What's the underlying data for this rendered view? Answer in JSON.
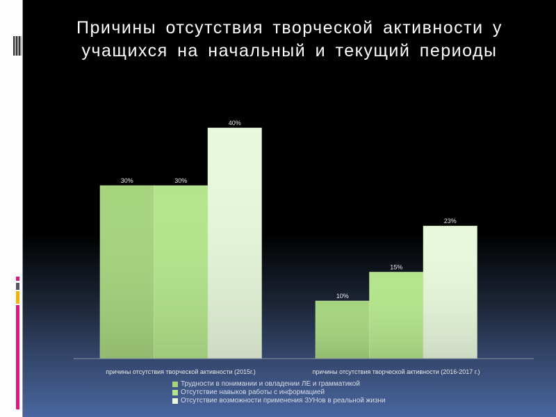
{
  "title_line1": "Причины  отсутствия  творческой  активности  у",
  "title_line2": "учащихся  на  начальный  и  текущий  периоды",
  "chart_data": {
    "type": "bar",
    "title": "",
    "categories": [
      "причины отсутствия творческой активности (2015г.)",
      "причины отсутствия творческой активности (2016-2017 г.)"
    ],
    "series": [
      {
        "name": "Трудности в понимании и овладении ЛЕ и грамматикой",
        "values": [
          30,
          10
        ],
        "labels": [
          "30%",
          "10%"
        ],
        "color": "#a6d47e"
      },
      {
        "name": "Отсутствие навыков работы с информацией",
        "values": [
          30,
          15
        ],
        "labels": [
          "30%",
          "15%"
        ],
        "color": "#b4e58c"
      },
      {
        "name": "Отсутствие возможности применения ЗУНов в реальной жизни",
        "values": [
          40,
          23
        ],
        "labels": [
          "40%",
          "23%"
        ],
        "color": "#e9f8dc"
      }
    ],
    "ylim": [
      0,
      45
    ],
    "grid": false,
    "legend_position": "bottom"
  }
}
